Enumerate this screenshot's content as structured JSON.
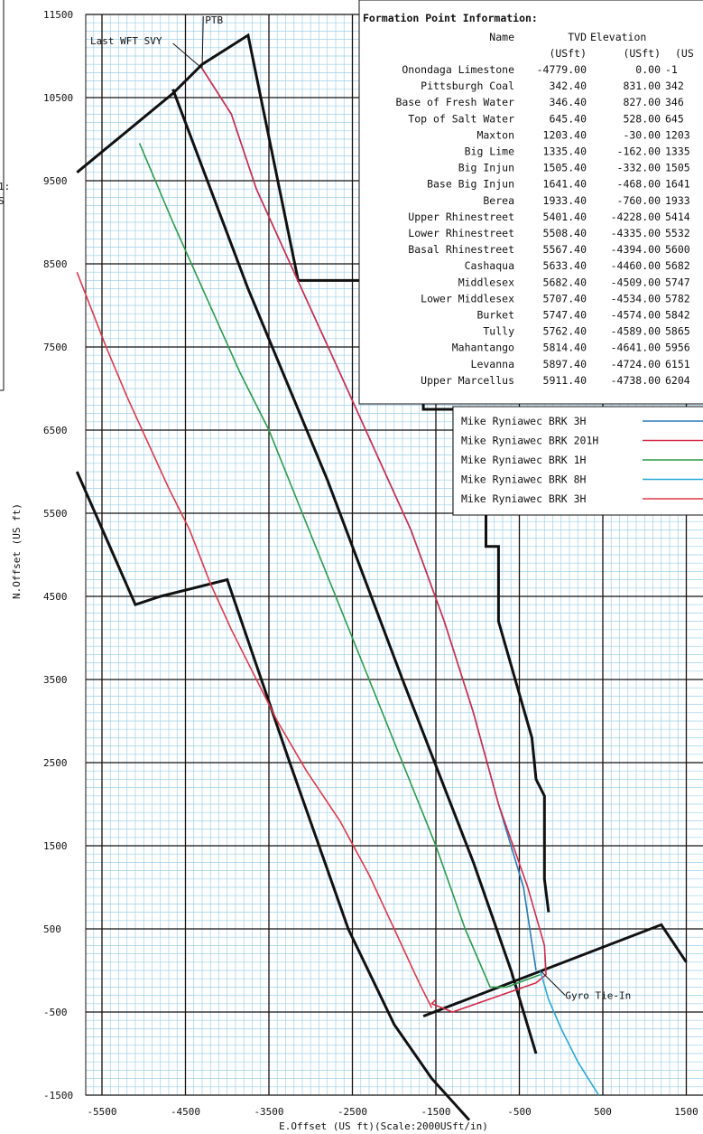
{
  "chart_data": {
    "type": "line",
    "xlabel": "E.Offset (US ft)(Scale:2000USft/in)",
    "ylabel": "N.Offset (US ft)",
    "xlim": [
      -5800,
      1500
    ],
    "ylim": [
      -1500,
      11500
    ],
    "x_ticks": [
      "-5500",
      "-4500",
      "-3500",
      "-2500",
      "-1500",
      "-500",
      "500",
      "1500"
    ],
    "y_ticks": [
      "11500",
      "10500",
      "9500",
      "8500",
      "7500",
      "6500",
      "5500",
      "4500",
      "3500",
      "2500",
      "1500",
      "500",
      "-500",
      "-1500"
    ],
    "left_fragment": [
      "1:",
      "S"
    ],
    "annotations": [
      {
        "text": "PTB",
        "x": -4200,
        "y": 11200
      },
      {
        "text": "Last WFT SVY",
        "x": -4300,
        "y": 10780
      },
      {
        "text": "Gyro Tie-In",
        "x": -150,
        "y": 0
      }
    ],
    "formation_table": {
      "title": "Formation Point Information:",
      "headers": [
        "Name",
        "TVD",
        "Elevation",
        "(US"
      ],
      "units": [
        "",
        "(USft)",
        "(USft)",
        "(US"
      ],
      "rows": [
        [
          "Onondaga Limestone",
          "-4779.00",
          "0.00",
          "-1"
        ],
        [
          "Pittsburgh Coal",
          "342.40",
          "831.00",
          "342"
        ],
        [
          "Base of Fresh Water",
          "346.40",
          "827.00",
          "346"
        ],
        [
          "Top of Salt Water",
          "645.40",
          "528.00",
          "645"
        ],
        [
          "Maxton",
          "1203.40",
          "-30.00",
          "1203"
        ],
        [
          "Big Lime",
          "1335.40",
          "-162.00",
          "1335"
        ],
        [
          "Big Injun",
          "1505.40",
          "-332.00",
          "1505"
        ],
        [
          "Base Big Injun",
          "1641.40",
          "-468.00",
          "1641"
        ],
        [
          "Berea",
          "1933.40",
          "-760.00",
          "1933"
        ],
        [
          "Upper Rhinestreet",
          "5401.40",
          "-4228.00",
          "5414"
        ],
        [
          "Lower Rhinestreet",
          "5508.40",
          "-4335.00",
          "5532"
        ],
        [
          "Basal Rhinestreet",
          "5567.40",
          "-4394.00",
          "5600"
        ],
        [
          "Cashaqua",
          "5633.40",
          "-4460.00",
          "5682"
        ],
        [
          "Middlesex",
          "5682.40",
          "-4509.00",
          "5747"
        ],
        [
          "Lower Middlesex",
          "5707.40",
          "-4534.00",
          "5782"
        ],
        [
          "Burket",
          "5747.40",
          "-4574.00",
          "5842"
        ],
        [
          "Tully",
          "5762.40",
          "-4589.00",
          "5865"
        ],
        [
          "Mahantango",
          "5814.40",
          "-4641.00",
          "5956"
        ],
        [
          "Levanna",
          "5897.40",
          "-4724.00",
          "6151"
        ],
        [
          "Upper Marcellus",
          "5911.40",
          "-4738.00",
          "6204"
        ]
      ]
    },
    "series": [
      {
        "name": "Mike Ryniawec BRK 3H",
        "color": "#2a7ab8",
        "x": [
          -4300,
          -3950,
          -3650,
          -3200,
          -2700,
          -2250,
          -1800,
          -1400,
          -1050,
          -750,
          -450,
          -300
        ],
        "y": [
          10850,
          10300,
          9400,
          8400,
          7300,
          6300,
          5300,
          4200,
          3100,
          2000,
          1000,
          0
        ]
      },
      {
        "name": "Mike Ryniawec BRK 201H",
        "color": "#d62a4a",
        "x": [
          -4300,
          -3950,
          -3650,
          -3200,
          -2700,
          -2250,
          -1800,
          -1400,
          -1050,
          -750,
          -400,
          -200,
          -180,
          -300,
          -1300,
          -1550,
          -1500
        ],
        "y": [
          10850,
          10300,
          9400,
          8400,
          7300,
          6300,
          5300,
          4200,
          3100,
          2000,
          1000,
          300,
          -50,
          -150,
          -500,
          -400,
          -350
        ]
      },
      {
        "name": "Mike Ryniawec BRK 1H",
        "color": "#2c9a4a",
        "x": [
          -5050,
          -4650,
          -4250,
          -3850,
          -3500,
          -3100,
          -2700,
          -2300,
          -1900,
          -1500,
          -1150,
          -850,
          -650,
          -250
        ],
        "y": [
          9950,
          9000,
          8100,
          7200,
          6500,
          5500,
          4500,
          3500,
          2500,
          1500,
          500,
          -200,
          -200,
          -50
        ]
      },
      {
        "name": "Mike Ryniawec BRK 8H",
        "color": "#29a8d6",
        "x": [
          -250,
          -150,
          0,
          200,
          450
        ],
        "y": [
          0,
          -350,
          -700,
          -1100,
          -1500
        ]
      },
      {
        "name": "Mike Ryniawec BRK 3H",
        "color": "#e0384a",
        "x": [
          -5800,
          -5450,
          -5200,
          -4950,
          -4700,
          -4450,
          -4200,
          -3950,
          -3700,
          -3400,
          -3050,
          -2650,
          -2300,
          -2000,
          -1700,
          -1550
        ],
        "y": [
          8400,
          7500,
          6900,
          6350,
          5800,
          5300,
          4650,
          4100,
          3600,
          3000,
          2400,
          1800,
          1150,
          500,
          -150,
          -450
        ]
      }
    ],
    "boundary_lines": [
      {
        "name": "lease-outline-upper",
        "x": [
          -5800,
          -4650,
          -4350,
          -4300,
          -3750,
          -3150,
          -1650,
          -1650,
          -900,
          -900,
          -750,
          -750,
          -350,
          -300,
          -200,
          -200,
          -150
        ],
        "y": [
          9600,
          10550,
          10850,
          10900,
          11250,
          8300,
          8300,
          6750,
          6750,
          5100,
          5100,
          4200,
          2800,
          2300,
          2100,
          1100,
          700
        ]
      },
      {
        "name": "lease-outline-lower",
        "x": [
          -5800,
          -5100,
          -4800,
          -4000,
          -3250,
          -2550,
          -2000,
          -1550,
          -1100
        ],
        "y": [
          6000,
          4400,
          4500,
          4700,
          2500,
          500,
          -650,
          -1300,
          -1800
        ]
      },
      {
        "name": "setback-line",
        "x": [
          -4650,
          -3750,
          -2800,
          -1900,
          -1050,
          -600,
          -300
        ],
        "y": [
          10600,
          8200,
          5900,
          3500,
          1300,
          0,
          -1000
        ]
      },
      {
        "name": "unit-line-bottom",
        "x": [
          -1650,
          1200,
          1500
        ],
        "y": [
          -550,
          550,
          100
        ]
      }
    ]
  },
  "legend": {
    "placement": "right-middle",
    "entries": [
      {
        "name": "Mike Ryniawec BRK 3H",
        "color": "#2a7ab8"
      },
      {
        "name": "Mike Ryniawec BRK 201H",
        "color": "#d62a4a"
      },
      {
        "name": "Mike Ryniawec BRK 1H",
        "color": "#2c9a4a"
      },
      {
        "name": "Mike Ryniawec BRK 8H",
        "color": "#29a8d6"
      },
      {
        "name": "Mike Ryniawec BRK 3H",
        "color": "#e0384a"
      }
    ]
  },
  "style": {
    "minor_grid_color": "#9fd0e8",
    "major_grid_color": "#111111",
    "boundary_color": "#111111"
  }
}
